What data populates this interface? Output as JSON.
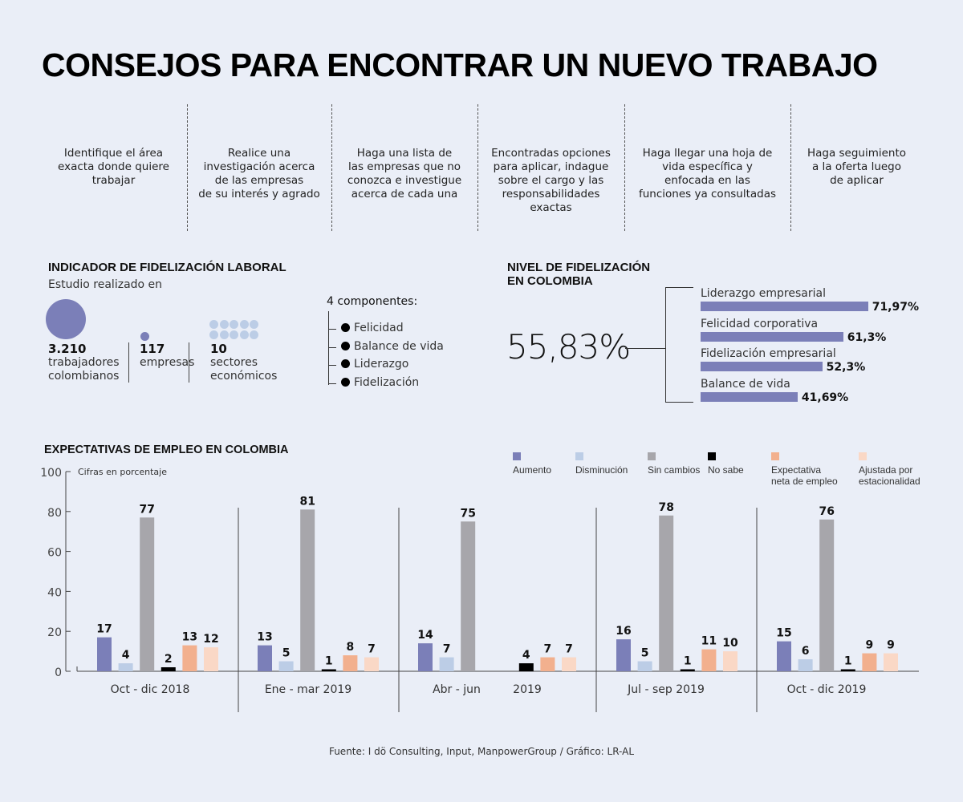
{
  "title": "CONSEJOS PARA ENCONTRAR UN NUEVO TRABAJO",
  "steps": [
    [
      "Identifique el área",
      "exacta donde quiere",
      "trabajar"
    ],
    [
      "Realice una",
      "investigación acerca",
      "de las empresas",
      "de su interés y agrado"
    ],
    [
      "Haga una lista de",
      "las empresas que no",
      "conozca e investigue",
      "acerca de cada una"
    ],
    [
      "Encontradas opciones",
      "para aplicar, indague",
      "sobre el cargo y las",
      "responsabilidades",
      "exactas"
    ],
    [
      "Haga llegar una hoja de",
      "vida específica y",
      "enfocada en las",
      "funciones ya consultadas"
    ],
    [
      "Haga seguimiento",
      "a la oferta luego",
      "de aplicar"
    ]
  ],
  "indicador": {
    "title": "INDICADOR DE FIDELIZACIÓN LABORAL",
    "subtitle": "Estudio realizado en",
    "stats": [
      {
        "value": "3.210",
        "line1": "trabajadores",
        "line2": "colombianos"
      },
      {
        "value": "117",
        "line1": "empresas",
        "line2": ""
      },
      {
        "value": "10",
        "line1": "sectores",
        "line2": "económicos"
      }
    ],
    "components_title": "4 componentes:",
    "components": [
      "Felicidad",
      "Balance de vida",
      "Liderazgo",
      "Fidelización"
    ]
  },
  "nivel": {
    "title_line1": "NIVEL DE FIDELIZACIÓN",
    "title_line2": "EN COLOMBIA",
    "total": "55,83%",
    "items": [
      {
        "label": "Liderazgo empresarial",
        "value": 71.97,
        "display": "71,97%"
      },
      {
        "label": "Felicidad corporativa",
        "value": 61.3,
        "display": "61,3%"
      },
      {
        "label": "Fidelización empresarial",
        "value": 52.3,
        "display": "52,3%"
      },
      {
        "label": "Balance de vida",
        "value": 41.69,
        "display": "41,69%"
      }
    ],
    "bar_color": "#7b7fb8"
  },
  "chart_data": {
    "type": "bar",
    "title": "EXPECTATIVAS DE EMPLEO EN COLOMBIA",
    "ylabel": "Cifras en porcentaje",
    "ylim": [
      0,
      100
    ],
    "yticks": [
      "0",
      "20",
      "40",
      "60",
      "80",
      "100"
    ],
    "categories": [
      "Oct - dic 2018",
      "Ene - mar 2019",
      "Abr - jun|2019",
      "Jul - sep 2019",
      "Oct - dic 2019"
    ],
    "legend_position": "top-right",
    "series": [
      {
        "name": "Aumento",
        "color": "#7b7fb8",
        "values": [
          17,
          13,
          14,
          16,
          15
        ]
      },
      {
        "name": "Disminución",
        "color": "#bccde6",
        "values": [
          4,
          5,
          7,
          5,
          6
        ]
      },
      {
        "name": "Sin cambios",
        "color": "#a7a6ab",
        "values": [
          77,
          81,
          75,
          78,
          76
        ]
      },
      {
        "name": "No sabe",
        "color": "#000000",
        "values": [
          2,
          1,
          4,
          1,
          1
        ]
      },
      {
        "name": "Expectativa|neta de empleo",
        "color": "#f2b08e",
        "values": [
          13,
          8,
          7,
          11,
          9
        ]
      },
      {
        "name": "Ajustada por|estacionalidad",
        "color": "#fad8c6",
        "values": [
          12,
          7,
          7,
          10,
          9
        ]
      }
    ]
  },
  "source": "Fuente: I dö Consulting, Input, ManpowerGroup / Gráfico: LR-AL"
}
